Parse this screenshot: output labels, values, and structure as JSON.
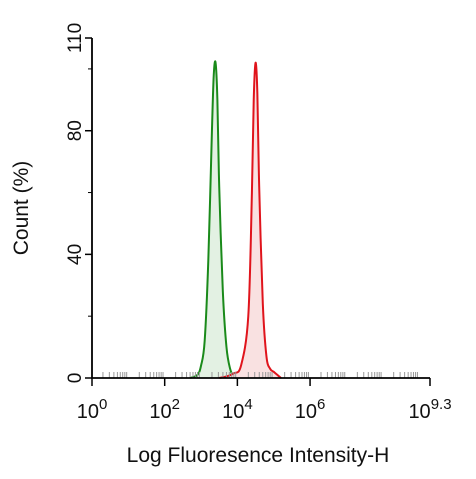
{
  "chart_data": {
    "type": "area",
    "title": "",
    "xlabel": "Log Fluoresence Intensity-H",
    "ylabel": "Count  (%)",
    "x_scale": "log10",
    "xlim": [
      0,
      9.3
    ],
    "ylim": [
      0,
      110
    ],
    "x_ticks": [
      {
        "value": 0,
        "base": "10",
        "exp": "0"
      },
      {
        "value": 2,
        "base": "10",
        "exp": "2"
      },
      {
        "value": 4,
        "base": "10",
        "exp": "4"
      },
      {
        "value": 6,
        "base": "10",
        "exp": "6"
      },
      {
        "value": 9.3,
        "base": "10",
        "exp": "9.3"
      }
    ],
    "y_ticks": [
      {
        "value": 0,
        "label": "0"
      },
      {
        "value": 40,
        "label": "40"
      },
      {
        "value": 80,
        "label": "80"
      },
      {
        "value": 110,
        "label": "110"
      }
    ],
    "series": [
      {
        "color": "#1a8a1a",
        "fill": "#e3f1e3",
        "points": [
          [
            2.7,
            0
          ],
          [
            2.9,
            1
          ],
          [
            3.0,
            4
          ],
          [
            3.1,
            12
          ],
          [
            3.2,
            38
          ],
          [
            3.3,
            80
          ],
          [
            3.35,
            98
          ],
          [
            3.4,
            102
          ],
          [
            3.45,
            90
          ],
          [
            3.5,
            62
          ],
          [
            3.6,
            28
          ],
          [
            3.7,
            10
          ],
          [
            3.8,
            3
          ],
          [
            3.9,
            0.5
          ],
          [
            4.0,
            0
          ]
        ]
      },
      {
        "color": "#e0141c",
        "fill": "#f9e1e1",
        "points": [
          [
            3.5,
            0
          ],
          [
            3.7,
            0.5
          ],
          [
            3.9,
            1.5
          ],
          [
            4.1,
            4
          ],
          [
            4.3,
            20
          ],
          [
            4.4,
            60
          ],
          [
            4.45,
            90
          ],
          [
            4.5,
            102
          ],
          [
            4.55,
            92
          ],
          [
            4.6,
            62
          ],
          [
            4.7,
            24
          ],
          [
            4.8,
            7
          ],
          [
            4.9,
            3
          ],
          [
            5.0,
            2
          ],
          [
            5.1,
            1
          ],
          [
            5.2,
            0
          ]
        ]
      }
    ]
  }
}
